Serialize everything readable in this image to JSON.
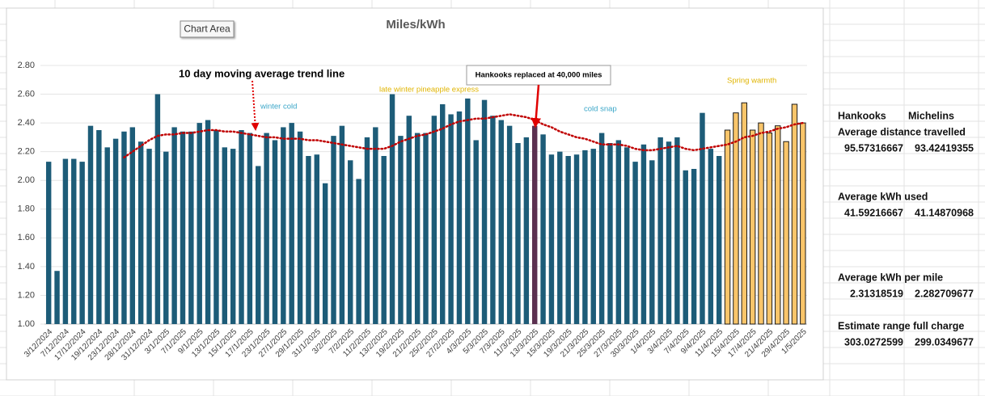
{
  "chart_data": {
    "type": "bar",
    "title": "Miles/kWh",
    "categories": [
      "3/12/2024",
      null,
      "7/12/2024",
      null,
      "17/12/2024",
      null,
      "19/12/2024",
      null,
      "23/12/2024",
      null,
      "28/12/2024",
      null,
      "31/12/2024",
      null,
      "3/1/2025",
      null,
      "7/1/2025",
      null,
      "9/1/2025",
      null,
      "13/1/2025",
      null,
      "15/1/2025",
      null,
      "17/1/2025",
      null,
      "23/1/2025",
      null,
      "27/1/2025",
      null,
      "29/1/2025",
      null,
      "31/1/2025",
      null,
      "3/2/2025",
      null,
      "7/2/2025",
      null,
      "11/2/2025",
      null,
      "13/2/2025",
      null,
      "19/2/2025",
      null,
      "21/2/2025",
      null,
      "25/2/2025",
      null,
      "27/2/2025",
      null,
      "4/3/2025",
      null,
      "5/3/2025",
      null,
      "7/3/2025",
      null,
      "11/3/2025",
      null,
      "13/3/2025",
      null,
      "15/3/2025",
      null,
      "19/3/2025",
      null,
      "21/3/2025",
      null,
      "25/3/2025",
      null,
      "27/3/2025",
      null,
      "30/3/2025",
      null,
      "1/4/2025",
      null,
      "3/4/2025",
      null,
      "7/4/2025",
      null,
      "9/4/2025",
      null,
      "11/4/2025",
      null,
      "15/4/2025",
      null,
      "17/4/2025",
      null,
      "21/4/2025",
      null,
      "29/4/2025",
      null,
      "1/5/2025"
    ],
    "series": [
      {
        "color": "#1d5c78",
        "values": [
          2.13,
          1.37,
          2.15,
          2.15,
          2.13,
          2.38,
          2.35,
          2.23,
          2.29,
          2.34,
          2.37,
          2.27,
          2.22,
          2.6,
          2.2,
          2.37,
          2.34,
          2.34,
          2.4,
          2.42,
          2.35,
          2.23,
          2.22,
          2.35,
          2.33,
          2.1,
          2.33,
          2.28,
          2.37,
          2.4,
          2.34,
          2.17,
          2.18,
          1.98,
          2.31,
          2.38,
          2.14,
          2.01,
          2.3,
          2.37,
          2.17,
          2.6,
          2.31,
          2.45,
          2.33,
          2.33,
          2.45,
          2.53,
          2.46,
          2.48,
          2.57,
          2.28,
          2.56,
          2.45,
          2.42,
          2.38,
          2.26,
          2.3,
          null,
          2.32,
          2.18,
          2.2,
          2.17,
          2.18,
          2.21,
          2.22,
          2.33,
          2.26,
          2.28,
          2.23,
          2.13,
          2.25,
          2.14,
          2.3,
          2.27,
          2.3,
          2.07,
          2.08,
          2.47,
          2.22,
          2.17,
          null,
          null,
          null,
          null,
          null,
          null,
          null,
          null,
          null,
          null
        ]
      },
      {
        "color": "#5b3050",
        "values": [
          null,
          null,
          null,
          null,
          null,
          null,
          null,
          null,
          null,
          null,
          null,
          null,
          null,
          null,
          null,
          null,
          null,
          null,
          null,
          null,
          null,
          null,
          null,
          null,
          null,
          null,
          null,
          null,
          null,
          null,
          null,
          null,
          null,
          null,
          null,
          null,
          null,
          null,
          null,
          null,
          null,
          null,
          null,
          null,
          null,
          null,
          null,
          null,
          null,
          null,
          null,
          null,
          null,
          null,
          null,
          null,
          null,
          null,
          2.38,
          null,
          null,
          null,
          null,
          null,
          null,
          null,
          null,
          null,
          null,
          null,
          null,
          null,
          null,
          null,
          null,
          null,
          null,
          null,
          null,
          null,
          null,
          null,
          null,
          null,
          null,
          null,
          null,
          null,
          null,
          null,
          null
        ]
      },
      {
        "color": "#f9c56a",
        "values": [
          null,
          null,
          null,
          null,
          null,
          null,
          null,
          null,
          null,
          null,
          null,
          null,
          null,
          null,
          null,
          null,
          null,
          null,
          null,
          null,
          null,
          null,
          null,
          null,
          null,
          null,
          null,
          null,
          null,
          null,
          null,
          null,
          null,
          null,
          null,
          null,
          null,
          null,
          null,
          null,
          null,
          null,
          null,
          null,
          null,
          null,
          null,
          null,
          null,
          null,
          null,
          null,
          null,
          null,
          null,
          null,
          null,
          null,
          null,
          null,
          null,
          null,
          null,
          null,
          null,
          null,
          null,
          null,
          null,
          null,
          null,
          null,
          null,
          null,
          null,
          null,
          null,
          null,
          null,
          null,
          null,
          2.35,
          2.47,
          2.54,
          2.35,
          2.4,
          2.33,
          2.38,
          2.27,
          2.53,
          2.4
        ]
      },
      {
        "type": "line",
        "color": "#c00000",
        "values": [
          null,
          null,
          null,
          null,
          null,
          null,
          null,
          null,
          null,
          2.16,
          2.2,
          2.24,
          2.28,
          2.31,
          2.32,
          2.32,
          2.33,
          2.33,
          2.34,
          2.35,
          2.35,
          2.34,
          2.34,
          2.33,
          2.32,
          2.31,
          2.3,
          2.3,
          2.29,
          2.29,
          2.29,
          2.28,
          2.28,
          2.27,
          2.26,
          2.25,
          2.24,
          2.23,
          2.22,
          2.22,
          2.22,
          2.24,
          2.27,
          2.29,
          2.31,
          2.32,
          2.34,
          2.36,
          2.39,
          2.41,
          2.42,
          2.43,
          2.43,
          2.44,
          2.45,
          2.46,
          2.45,
          2.44,
          2.42,
          2.39,
          2.37,
          2.34,
          2.32,
          2.3,
          2.29,
          2.27,
          2.25,
          2.25,
          2.25,
          2.24,
          2.22,
          2.21,
          2.21,
          2.22,
          2.23,
          2.24,
          2.22,
          2.21,
          2.22,
          2.23,
          2.24,
          2.25,
          2.27,
          2.3,
          2.31,
          2.33,
          2.34,
          2.36,
          2.37,
          2.39,
          2.4
        ]
      }
    ],
    "ylim": [
      1,
      2.8
    ],
    "yticks": [
      {
        "value": 1,
        "label": "1.00"
      },
      {
        "value": 1.2,
        "label": "1.20"
      },
      {
        "value": 1.4,
        "label": "1.40"
      },
      {
        "value": 1.6,
        "label": "1.60"
      },
      {
        "value": 1.8,
        "label": "1.80"
      },
      {
        "value": 2,
        "label": "2.00"
      },
      {
        "value": 2.2,
        "label": "2.20"
      },
      {
        "value": 2.4,
        "label": "2.40"
      },
      {
        "value": 2.6,
        "label": "2.60"
      },
      {
        "value": 2.8,
        "label": "2.80"
      }
    ],
    "grid": true,
    "annotations": [
      {
        "text": "10 day moving average trend line",
        "color": "#000000"
      },
      {
        "text": "Hankooks  replaced at 40,000 miles",
        "color": "#000000"
      },
      {
        "text": "winter cold",
        "color": "#3aa6c8"
      },
      {
        "text": "late winter pineapple express",
        "color": "#e0b400"
      },
      {
        "text": "cold snap",
        "color": "#3aa6c8"
      },
      {
        "text": "Spring warmth",
        "color": "#e0b400"
      }
    ]
  },
  "tooltip": "Chart Area",
  "summary": {
    "headers": [
      "Hankooks",
      "Michelins"
    ],
    "rows": [
      {
        "label": "Average distance travelled",
        "values": [
          95.57316667,
          93.42419355
        ]
      },
      {
        "label": "Average kWh used",
        "values": [
          41.59216667,
          41.14870968
        ]
      },
      {
        "label": "Average kWh per mile",
        "values": [
          2.31318519,
          2.282709677
        ]
      },
      {
        "label": "Estimate range full charge",
        "values": [
          303.0272599,
          299.0349677
        ]
      }
    ]
  }
}
